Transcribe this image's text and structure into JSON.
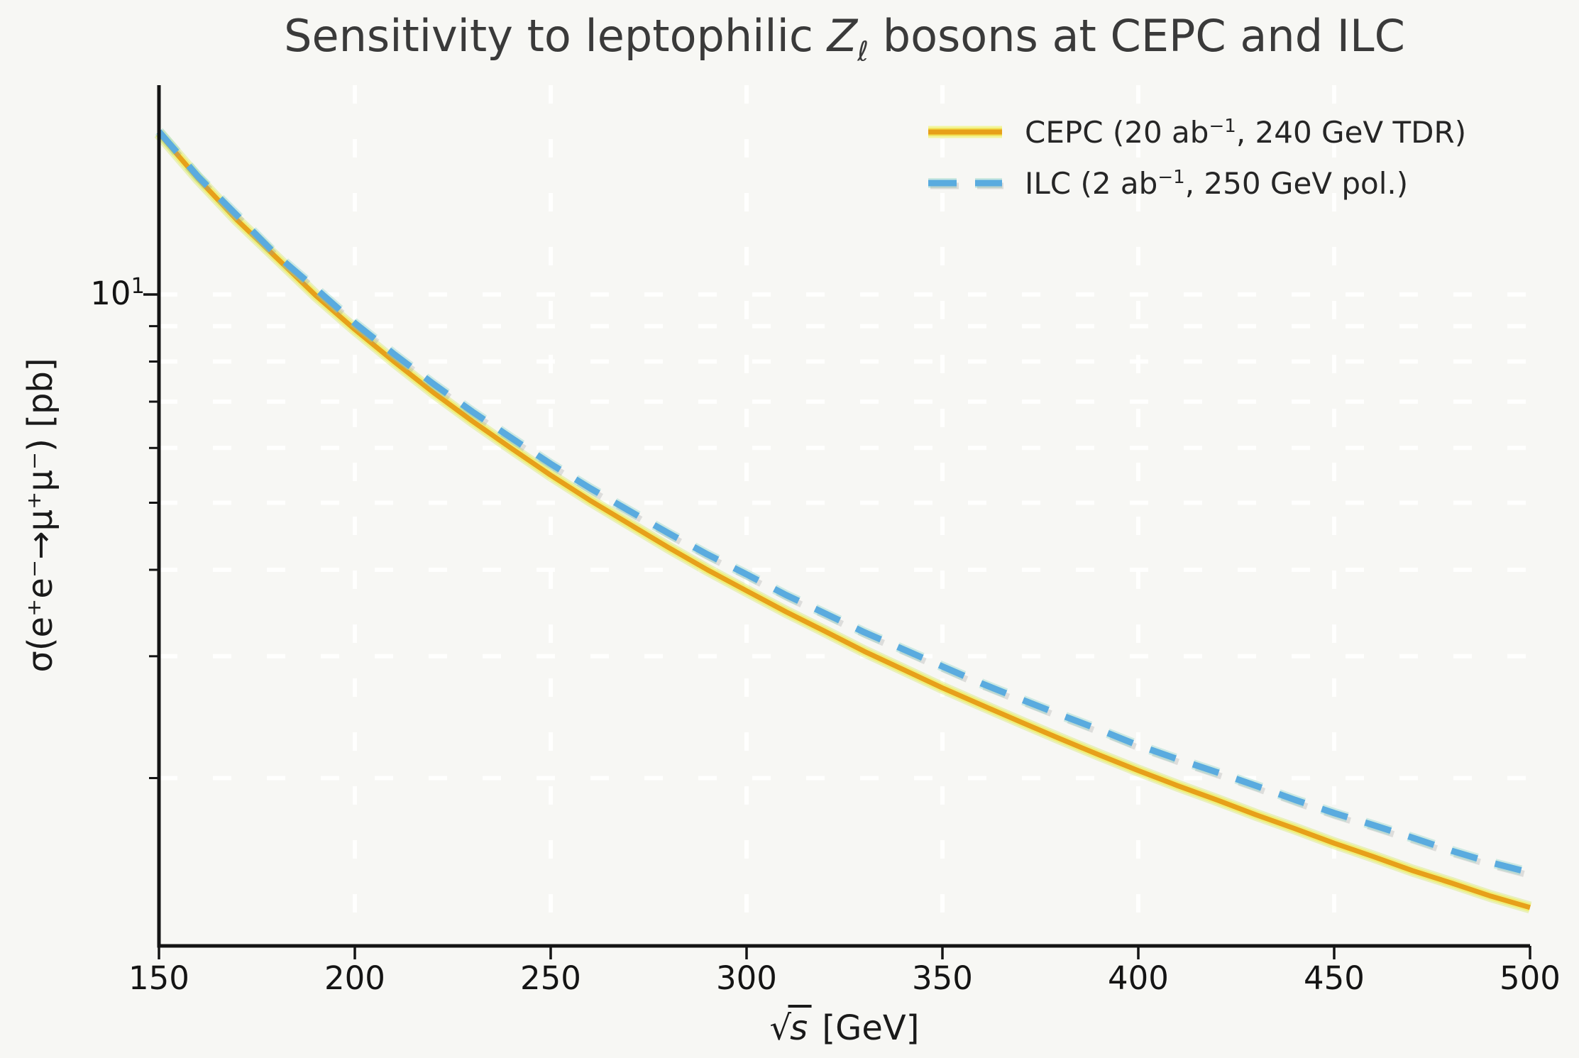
{
  "title": {
    "prefix": "Sensitivity to leptophilic ",
    "boson_symbol": "Z",
    "boson_subscript": "ℓ",
    "suffix": " bosons at CEPC and ILC"
  },
  "axes": {
    "x": {
      "label_radical": "√",
      "label_variable": "s",
      "label_unit": " [GeV]",
      "label_plain": "√s [GeV]",
      "ticks": [
        150,
        200,
        250,
        300,
        350,
        400,
        450,
        500
      ],
      "range": [
        150,
        500
      ],
      "scale": "linear"
    },
    "y": {
      "label": "σ(e⁺e⁻→μ⁺μ⁻) [pb]",
      "major_tick": {
        "base": "10",
        "exp": "1",
        "value": 10
      },
      "minor_tick_values": [
        9,
        8,
        7,
        6,
        5,
        4,
        3,
        2
      ],
      "grid_values": [
        10,
        9,
        8,
        7,
        6,
        5,
        4,
        3,
        2
      ],
      "range_approx": [
        1.15,
        20.1
      ],
      "scale": "log"
    }
  },
  "legend": {
    "position": "upper right",
    "items": [
      {
        "name": "CEPC",
        "label_pre": "CEPC (20 ab",
        "label_sup": "−1",
        "label_post": ", 240 GeV TDR)",
        "style": "solid",
        "color": "#e7a01a",
        "glow_color": "#f3ee4e"
      },
      {
        "name": "ILC",
        "label_pre": "ILC (2 ab",
        "label_sup": "−1",
        "label_post": ", 250 GeV pol.)",
        "style": "dashed",
        "color": "#5aabdf",
        "glow_color": "#86d2c4"
      }
    ]
  },
  "chart_data": {
    "type": "line",
    "title": "Sensitivity to leptophilic Zℓ bosons at CEPC and ILC",
    "xlabel": "√s [GeV]",
    "ylabel": "σ(e⁺e⁻→μ⁺μ⁻) [pb]",
    "xlim": [
      150,
      500
    ],
    "ylim": [
      1.15,
      20.1
    ],
    "yscale": "log",
    "grid": true,
    "legend_position": "upper right",
    "x": [
      150,
      160,
      170,
      180,
      190,
      200,
      210,
      220,
      230,
      240,
      250,
      260,
      270,
      280,
      290,
      300,
      310,
      320,
      330,
      340,
      350,
      360,
      370,
      380,
      390,
      400,
      410,
      420,
      430,
      440,
      450,
      460,
      470,
      480,
      490,
      500
    ],
    "series": [
      {
        "name": "CEPC (20 ab⁻¹, 240 GeV TDR)",
        "style": "solid",
        "color": "#e7a01a",
        "values_pb": [
          17.1,
          14.7,
          12.8,
          11.3,
          9.97,
          8.9,
          8.0,
          7.22,
          6.56,
          5.99,
          5.48,
          5.04,
          4.66,
          4.31,
          4.0,
          3.73,
          3.48,
          3.26,
          3.05,
          2.87,
          2.7,
          2.55,
          2.41,
          2.28,
          2.16,
          2.05,
          1.95,
          1.86,
          1.77,
          1.69,
          1.61,
          1.54,
          1.47,
          1.41,
          1.35,
          1.3
        ]
      },
      {
        "name": "ILC (2 ab⁻¹, 250 GeV pol.)",
        "style": "dashed",
        "color": "#5aabdf",
        "values_pb": [
          17.2,
          14.8,
          13.0,
          11.4,
          10.2,
          9.09,
          8.2,
          7.43,
          6.77,
          6.2,
          5.69,
          5.25,
          4.87,
          4.52,
          4.21,
          3.94,
          3.68,
          3.46,
          3.25,
          3.07,
          2.9,
          2.74,
          2.6,
          2.47,
          2.35,
          2.23,
          2.13,
          2.04,
          1.95,
          1.86,
          1.78,
          1.71,
          1.64,
          1.57,
          1.51,
          1.46
        ]
      }
    ]
  },
  "colors": {
    "background": "#f7f7f4",
    "grid": "#ffffff",
    "spine": "#141414",
    "title_text": "#3a3a3a",
    "tick_text": "#141414"
  }
}
